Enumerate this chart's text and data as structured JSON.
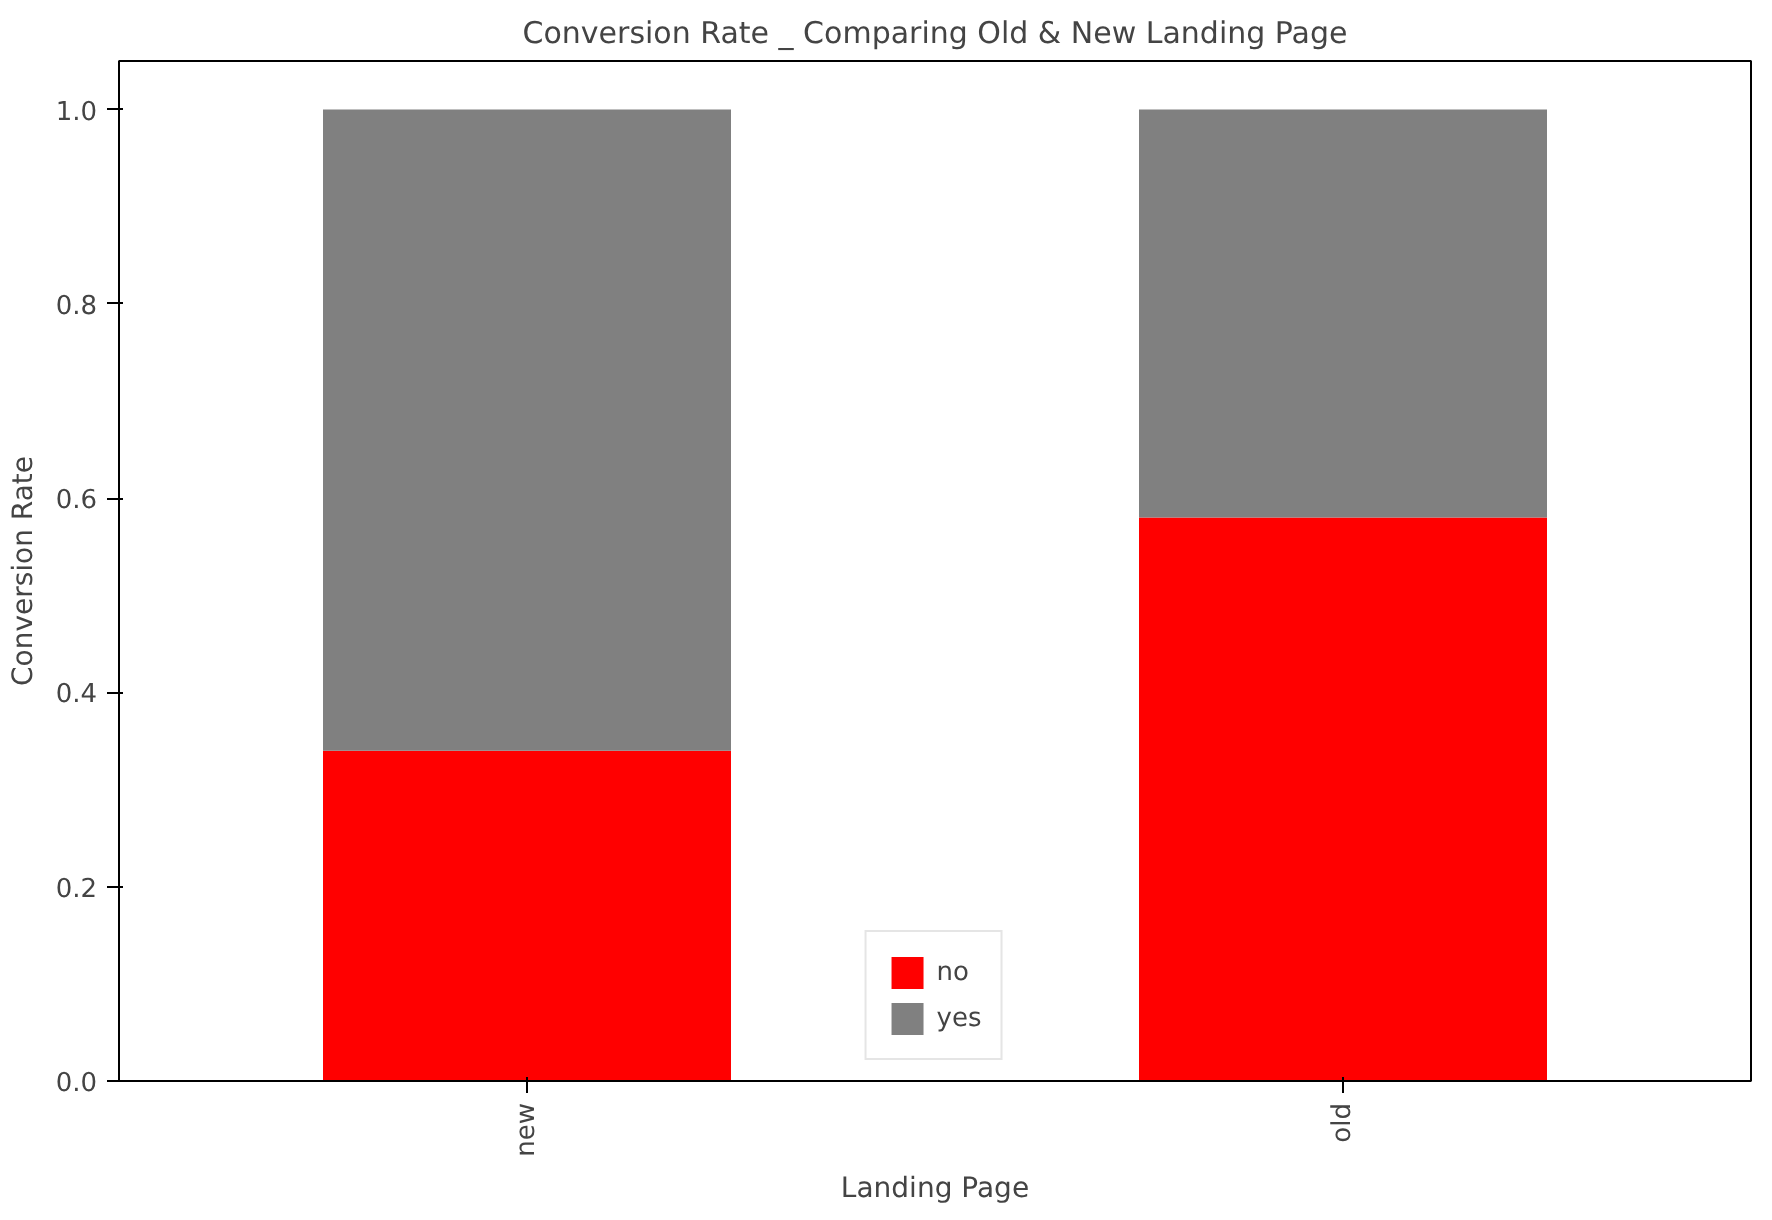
{
  "chart_data": {
    "type": "bar",
    "stacked": true,
    "title": "Conversion Rate _ Comparing Old & New Landing Page",
    "xlabel": "Landing Page",
    "ylabel": "Conversion Rate",
    "categories": [
      "new",
      "old"
    ],
    "series": [
      {
        "name": "no",
        "color": "#ff0000",
        "values": [
          0.34,
          0.58
        ]
      },
      {
        "name": "yes",
        "color": "#808080",
        "values": [
          0.66,
          0.42
        ]
      }
    ],
    "ylim": [
      0,
      1.05
    ],
    "yticks": [
      {
        "value": 0,
        "label": "0.0"
      },
      {
        "value": 0.2,
        "label": "0.2"
      },
      {
        "value": 0.4,
        "label": "0.4"
      },
      {
        "value": 0.6,
        "label": "0.6"
      },
      {
        "value": 0.8,
        "label": "0.8"
      },
      {
        "value": 1,
        "label": "1.0"
      }
    ],
    "grid": false,
    "legend": "bottom"
  }
}
